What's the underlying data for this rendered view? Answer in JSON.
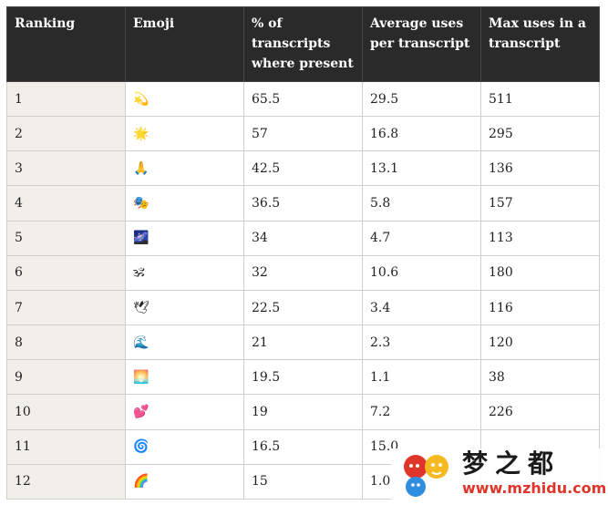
{
  "columns": [
    "Ranking",
    "Emoji",
    "% of transcripts where present",
    "Average uses per transcript",
    "Max uses in a transcript"
  ],
  "rows": [
    {
      "rank": "1",
      "emoji": "💫",
      "pct": "65.5",
      "avg": "29.5",
      "max": "511"
    },
    {
      "rank": "2",
      "emoji": "🌟",
      "pct": "57",
      "avg": "16.8",
      "max": "295"
    },
    {
      "rank": "3",
      "emoji": "🙏",
      "pct": "42.5",
      "avg": "13.1",
      "max": "136"
    },
    {
      "rank": "4",
      "emoji": "🎭",
      "pct": "36.5",
      "avg": "5.8",
      "max": "157"
    },
    {
      "rank": "5",
      "emoji": "🌌",
      "pct": "34",
      "avg": "4.7",
      "max": "113"
    },
    {
      "rank": "6",
      "emoji": "🕉",
      "pct": "32",
      "avg": "10.6",
      "max": "180"
    },
    {
      "rank": "7",
      "emoji": "🕊",
      "pct": "22.5",
      "avg": "3.4",
      "max": "116"
    },
    {
      "rank": "8",
      "emoji": "🌊",
      "pct": "21",
      "avg": "2.3",
      "max": "120"
    },
    {
      "rank": "9",
      "emoji": "🌅",
      "pct": "19.5",
      "avg": "1.1",
      "max": "38"
    },
    {
      "rank": "10",
      "emoji": "💕",
      "pct": "19",
      "avg": "7.2",
      "max": "226"
    },
    {
      "rank": "11",
      "emoji": "🌀",
      "pct": "16.5",
      "avg": "15.0",
      "max": ""
    },
    {
      "rank": "12",
      "emoji": "🌈",
      "pct": "15",
      "avg": "1.0",
      "max": ""
    }
  ],
  "watermark": {
    "title": "梦之都",
    "url": "www.mzhidu.com",
    "colors": {
      "red": "#e0352b",
      "yellow": "#f5b921",
      "blue": "#2f8ee0"
    }
  }
}
